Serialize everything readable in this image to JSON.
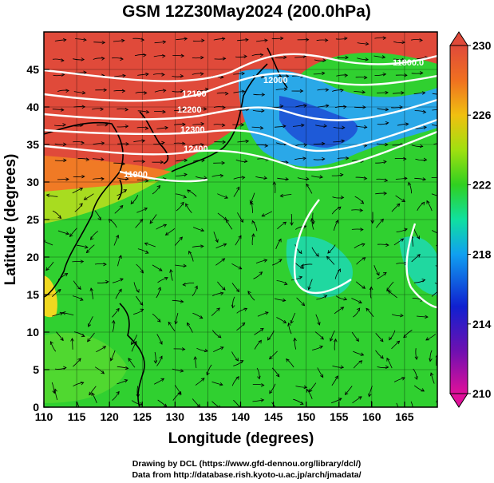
{
  "chart_data": {
    "type": "heatmap",
    "title": "GSM 12Z30May2024 (200.0hPa)",
    "xlabel": "Longitude (degrees)",
    "ylabel": "Latitude  (degrees)",
    "xlim": [
      110,
      170
    ],
    "ylim": [
      0,
      50
    ],
    "x_ticks": [
      "110",
      "115",
      "120",
      "125",
      "130",
      "135",
      "140",
      "145",
      "150",
      "155",
      "160",
      "165"
    ],
    "y_ticks": [
      "0",
      "5",
      "10",
      "15",
      "20",
      "25",
      "30",
      "35",
      "40",
      "45"
    ],
    "colorbar": {
      "min": 210,
      "max": 230,
      "ticks": [
        "210",
        "214",
        "218",
        "222",
        "226",
        "230"
      ],
      "colors": [
        "#e0109a",
        "#1010d0",
        "#10a0f0",
        "#10e0a0",
        "#30d020",
        "#a0e010",
        "#f0c010",
        "#f07020",
        "#e04a3a"
      ]
    },
    "contour_labels": [
      "12100",
      "12200",
      "12300",
      "12400",
      "12000",
      "11900",
      "11800.0"
    ],
    "vectors": "streamlines (wind)",
    "coastlines": true,
    "grid": true
  },
  "credits": {
    "line1": "Drawing by DCL (https://www.gfd-dennou.org/library/dcl/)",
    "line2": "Data from http://database.rish.kyoto-u.ac.jp/arch/jmadata/"
  }
}
